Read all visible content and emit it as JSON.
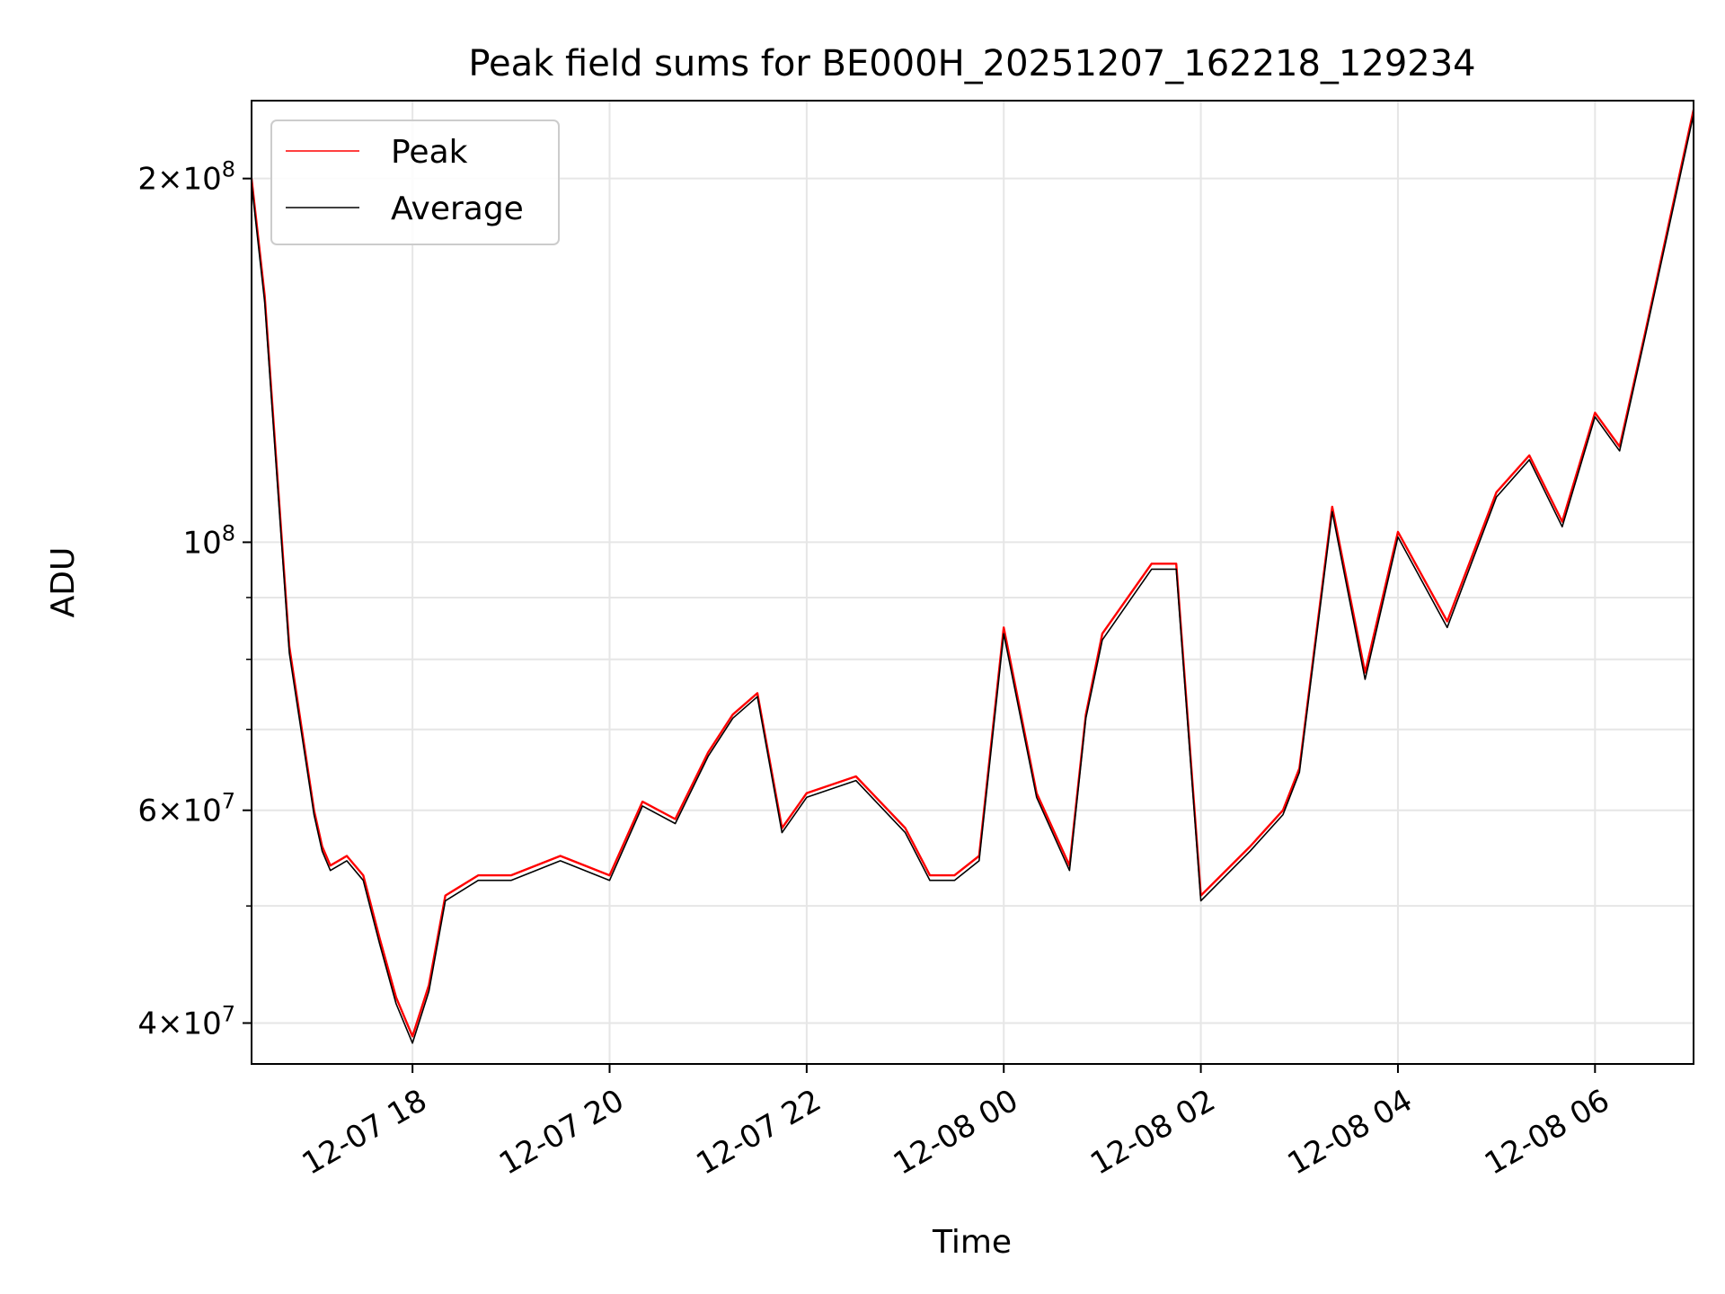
{
  "chart_data": {
    "type": "line",
    "title": "Peak field sums for BE000H_20251207_162218_129234",
    "xlabel": "Time",
    "ylabel": "ADU",
    "yscale": "log",
    "ylim": [
      37000000,
      232000000
    ],
    "xlim": [
      "2025-12-07 16:22",
      "2025-12-08 07:00"
    ],
    "grid": true,
    "legend_position": "top-left",
    "x_ticks": [
      {
        "value": "2025-12-07 18:00",
        "label": "12-07 18"
      },
      {
        "value": "2025-12-07 20:00",
        "label": "12-07 20"
      },
      {
        "value": "2025-12-07 22:00",
        "label": "12-07 22"
      },
      {
        "value": "2025-12-08 00:00",
        "label": "12-08 00"
      },
      {
        "value": "2025-12-08 02:00",
        "label": "12-08 02"
      },
      {
        "value": "2025-12-08 04:00",
        "label": "12-08 04"
      },
      {
        "value": "2025-12-08 06:00",
        "label": "12-08 06"
      }
    ],
    "y_major_ticks": [
      {
        "value": 40000000,
        "mant": "4",
        "exp": "7"
      },
      {
        "value": 60000000,
        "mant": "6",
        "exp": "7"
      },
      {
        "value": 100000000,
        "mant": "",
        "exp": "8"
      },
      {
        "value": 200000000,
        "mant": "2",
        "exp": "8"
      }
    ],
    "y_minor_ticks": [
      50000000,
      70000000,
      80000000,
      90000000
    ],
    "x": [
      "2025-12-07 16:22",
      "2025-12-07 16:30",
      "2025-12-07 16:45",
      "2025-12-07 17:00",
      "2025-12-07 17:05",
      "2025-12-07 17:10",
      "2025-12-07 17:20",
      "2025-12-07 17:30",
      "2025-12-07 17:40",
      "2025-12-07 17:50",
      "2025-12-07 18:00",
      "2025-12-07 18:10",
      "2025-12-07 18:20",
      "2025-12-07 18:40",
      "2025-12-07 19:00",
      "2025-12-07 19:30",
      "2025-12-07 20:00",
      "2025-12-07 20:20",
      "2025-12-07 20:40",
      "2025-12-07 21:00",
      "2025-12-07 21:15",
      "2025-12-07 21:30",
      "2025-12-07 21:45",
      "2025-12-07 22:00",
      "2025-12-07 22:30",
      "2025-12-07 23:00",
      "2025-12-07 23:15",
      "2025-12-07 23:30",
      "2025-12-07 23:45",
      "2025-12-08 00:00",
      "2025-12-08 00:20",
      "2025-12-08 00:40",
      "2025-12-08 00:50",
      "2025-12-08 01:00",
      "2025-12-08 01:30",
      "2025-12-08 01:45",
      "2025-12-08 02:00",
      "2025-12-08 02:30",
      "2025-12-08 02:50",
      "2025-12-08 03:00",
      "2025-12-08 03:20",
      "2025-12-08 03:40",
      "2025-12-08 04:00",
      "2025-12-08 04:30",
      "2025-12-08 05:00",
      "2025-12-08 05:20",
      "2025-12-08 05:40",
      "2025-12-08 06:00",
      "2025-12-08 06:15",
      "2025-12-08 06:30",
      "2025-12-08 07:00"
    ],
    "series": [
      {
        "name": "Peak",
        "color": "#ff0000",
        "values": [
          200000000,
          160000000,
          82000000,
          60000000,
          56000000,
          54000000,
          55000000,
          53000000,
          47000000,
          42000000,
          39000000,
          43000000,
          51000000,
          53000000,
          53000000,
          55000000,
          53000000,
          61000000,
          59000000,
          67000000,
          72000000,
          75000000,
          58000000,
          62000000,
          64000000,
          58000000,
          53000000,
          53000000,
          55000000,
          85000000,
          62000000,
          54000000,
          72000000,
          84000000,
          96000000,
          96000000,
          51000000,
          56000000,
          60000000,
          65000000,
          107000000,
          78000000,
          102000000,
          86000000,
          110000000,
          118000000,
          104000000,
          128000000,
          120000000,
          148000000,
          228000000
        ]
      },
      {
        "name": "Average",
        "color": "#000000",
        "values": [
          198000000,
          158000000,
          81000000,
          59500000,
          55500000,
          53500000,
          54500000,
          52500000,
          46500000,
          41500000,
          38500000,
          42500000,
          50500000,
          52500000,
          52500000,
          54500000,
          52500000,
          60500000,
          58500000,
          66500000,
          71500000,
          74500000,
          57500000,
          61500000,
          63500000,
          57500000,
          52500000,
          52500000,
          54500000,
          84000000,
          61500000,
          53500000,
          71500000,
          83000000,
          95000000,
          95000000,
          50500000,
          55500000,
          59500000,
          64500000,
          106000000,
          77000000,
          101000000,
          85000000,
          109000000,
          117000000,
          103000000,
          127000000,
          119000000,
          147000000,
          226000000
        ]
      }
    ]
  }
}
